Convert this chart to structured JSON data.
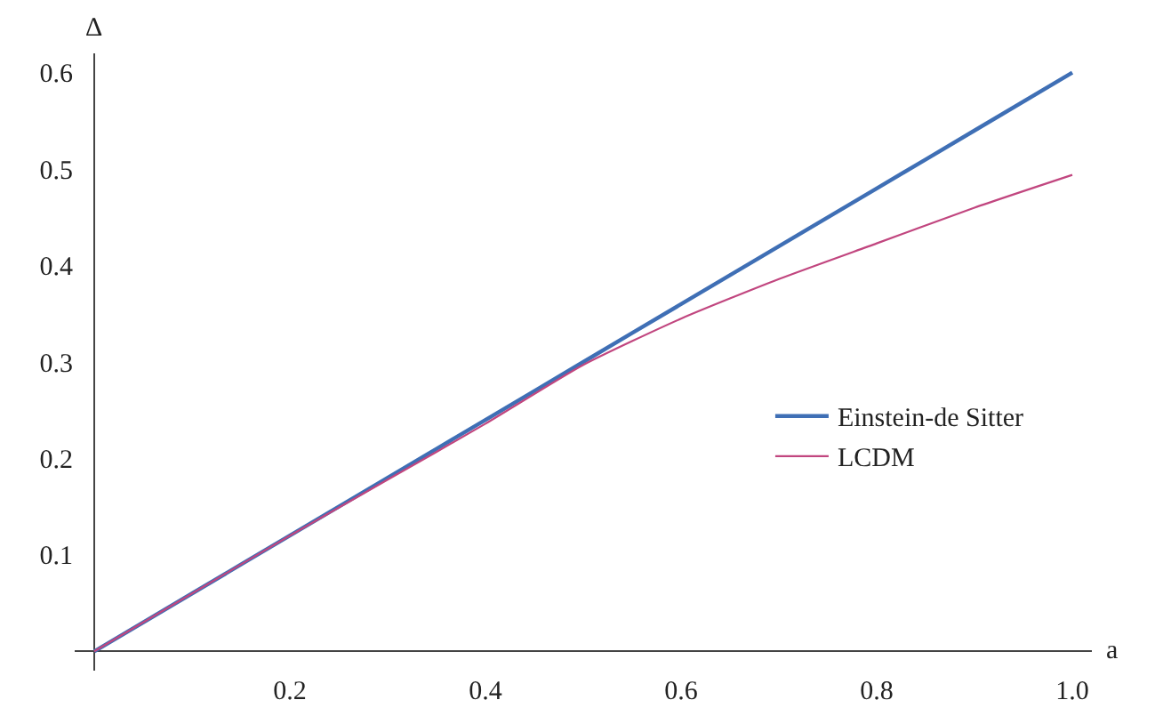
{
  "chart_data": {
    "type": "line",
    "xlabel": "a",
    "ylabel": "Δ",
    "x": [
      0,
      0.1,
      0.2,
      0.3,
      0.4,
      0.5,
      0.6,
      0.7,
      0.8,
      0.9,
      1.0
    ],
    "series": [
      {
        "name": "Einstein-de Sitter",
        "color": "#3f6fb5",
        "values": [
          0,
          0.06,
          0.12,
          0.18,
          0.24,
          0.3,
          0.36,
          0.42,
          0.48,
          0.54,
          0.6
        ]
      },
      {
        "name": "LCDM",
        "color": "#c1467f",
        "values": [
          0,
          0.06,
          0.12,
          0.178,
          0.236,
          0.297,
          0.345,
          0.386,
          0.423,
          0.46,
          0.494
        ]
      }
    ],
    "xlim": [
      -0.02,
      1.02
    ],
    "ylim": [
      -0.02,
      0.62
    ],
    "xticks": [
      0.2,
      0.4,
      0.6,
      0.8,
      {
        "value": 1.0,
        "label": "1.0"
      }
    ],
    "yticks": [
      0.1,
      0.2,
      0.3,
      0.4,
      0.5,
      0.6
    ],
    "grid": false,
    "legend": "right",
    "marker": "none",
    "line_style": "solid"
  }
}
